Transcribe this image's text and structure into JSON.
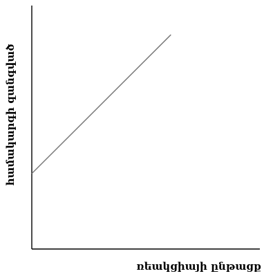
{
  "chart_data": {
    "type": "line",
    "title": "",
    "xlabel": "ռեակցիայի ընթացք",
    "ylabel": "համակարգի զանգված",
    "xlim": [
      0,
      10
    ],
    "ylim": [
      0,
      10
    ],
    "grid": false,
    "legend": "none",
    "series": [
      {
        "x": [
          0,
          6.1
        ],
        "y": [
          3.1,
          8.8
        ]
      }
    ],
    "colors": {
      "axis": "#000000",
      "line": "#7a7a7a"
    }
  }
}
